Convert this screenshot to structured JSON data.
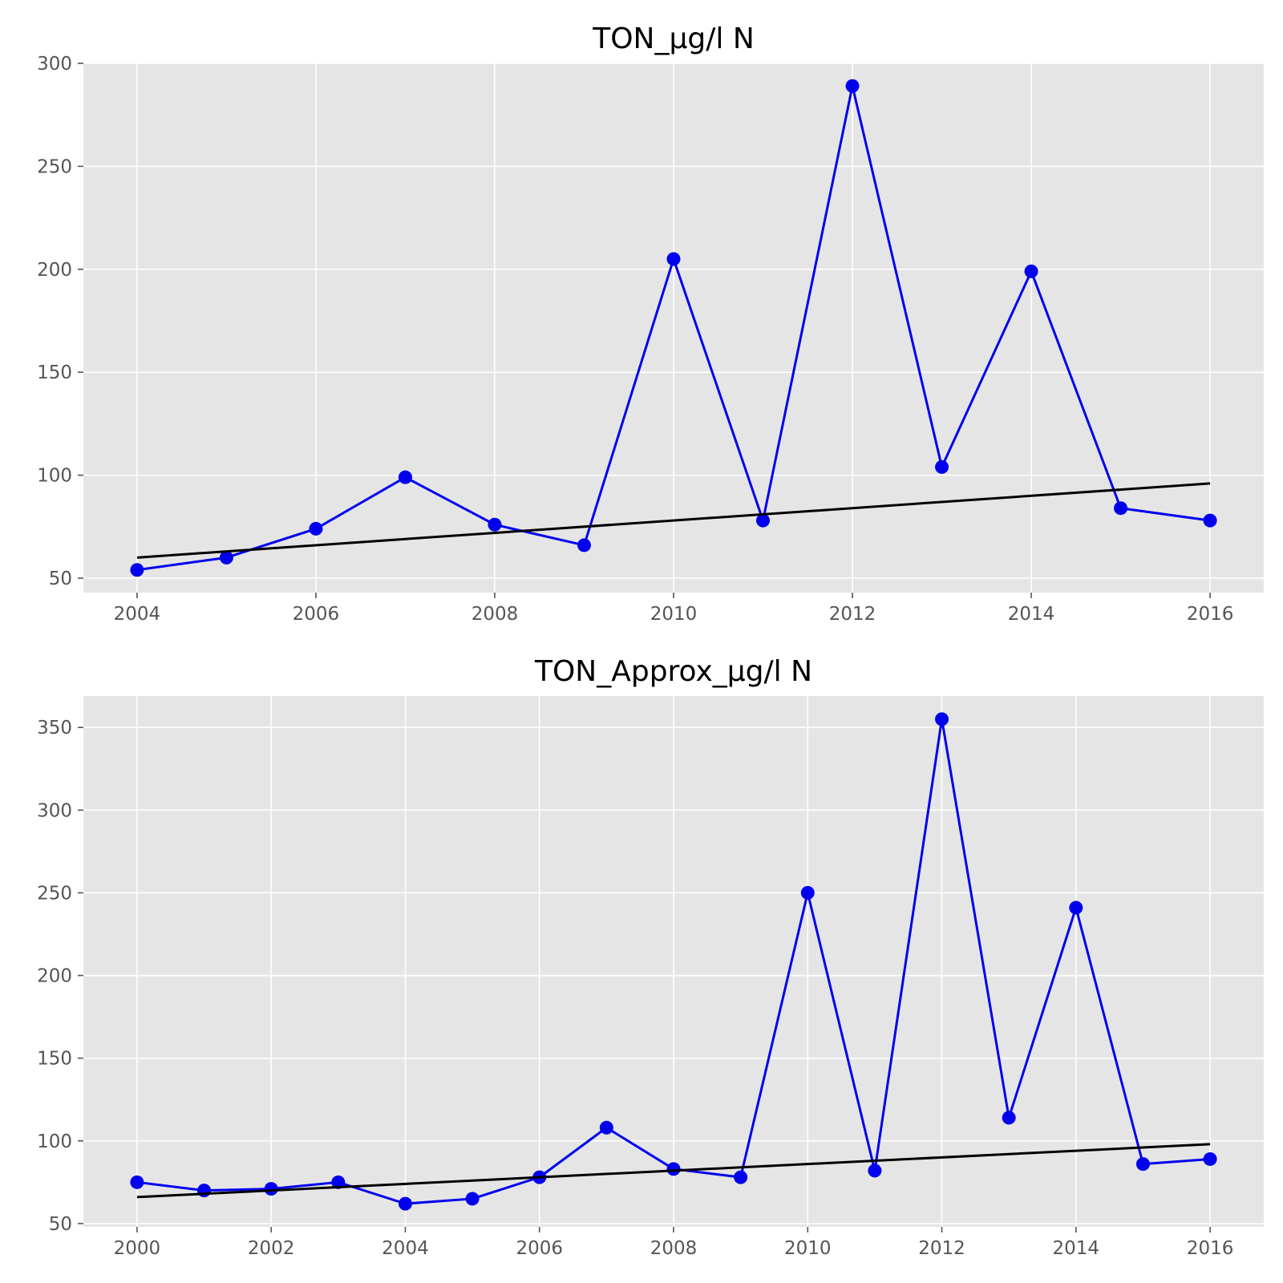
{
  "chart_data": [
    {
      "type": "line",
      "title": "TON_µg/l N",
      "xlabel": "",
      "ylabel": "",
      "xlim": [
        2003.4,
        2016.6
      ],
      "ylim": [
        43,
        300
      ],
      "xticks": [
        2004,
        2006,
        2008,
        2010,
        2012,
        2014,
        2016
      ],
      "yticks": [
        50,
        100,
        150,
        200,
        250,
        300
      ],
      "grid": true,
      "colors": {
        "background": "#e5e5e5",
        "grid": "#ffffff",
        "series": "#0000ee",
        "trend": "#000000"
      },
      "series": [
        {
          "x": [
            2004,
            2005,
            2006,
            2007,
            2008,
            2009,
            2010,
            2011,
            2012,
            2013,
            2014,
            2015,
            2016
          ],
          "values": [
            54,
            60,
            74,
            99,
            76,
            66,
            205,
            78,
            289,
            104,
            199,
            84,
            78
          ],
          "markers": true
        },
        {
          "x": [
            2004,
            2016
          ],
          "values": [
            60,
            96
          ],
          "markers": false
        }
      ]
    },
    {
      "type": "line",
      "title": "TON_Approx_µg/l N",
      "xlabel": "",
      "ylabel": "",
      "xlim": [
        1999.2,
        2016.8
      ],
      "ylim": [
        48,
        369
      ],
      "xticks": [
        2000,
        2002,
        2004,
        2006,
        2008,
        2010,
        2012,
        2014,
        2016
      ],
      "yticks": [
        50,
        100,
        150,
        200,
        250,
        300,
        350
      ],
      "grid": true,
      "colors": {
        "background": "#e5e5e5",
        "grid": "#ffffff",
        "series": "#0000ee",
        "trend": "#000000"
      },
      "series": [
        {
          "x": [
            2000,
            2001,
            2002,
            2003,
            2004,
            2005,
            2006,
            2007,
            2008,
            2009,
            2010,
            2011,
            2012,
            2013,
            2014,
            2015,
            2016
          ],
          "values": [
            75,
            70,
            71,
            75,
            62,
            65,
            78,
            108,
            83,
            78,
            250,
            82,
            355,
            114,
            241,
            86,
            89
          ],
          "markers": true
        },
        {
          "x": [
            2000,
            2016
          ],
          "values": [
            66,
            98
          ],
          "markers": false
        }
      ]
    }
  ]
}
